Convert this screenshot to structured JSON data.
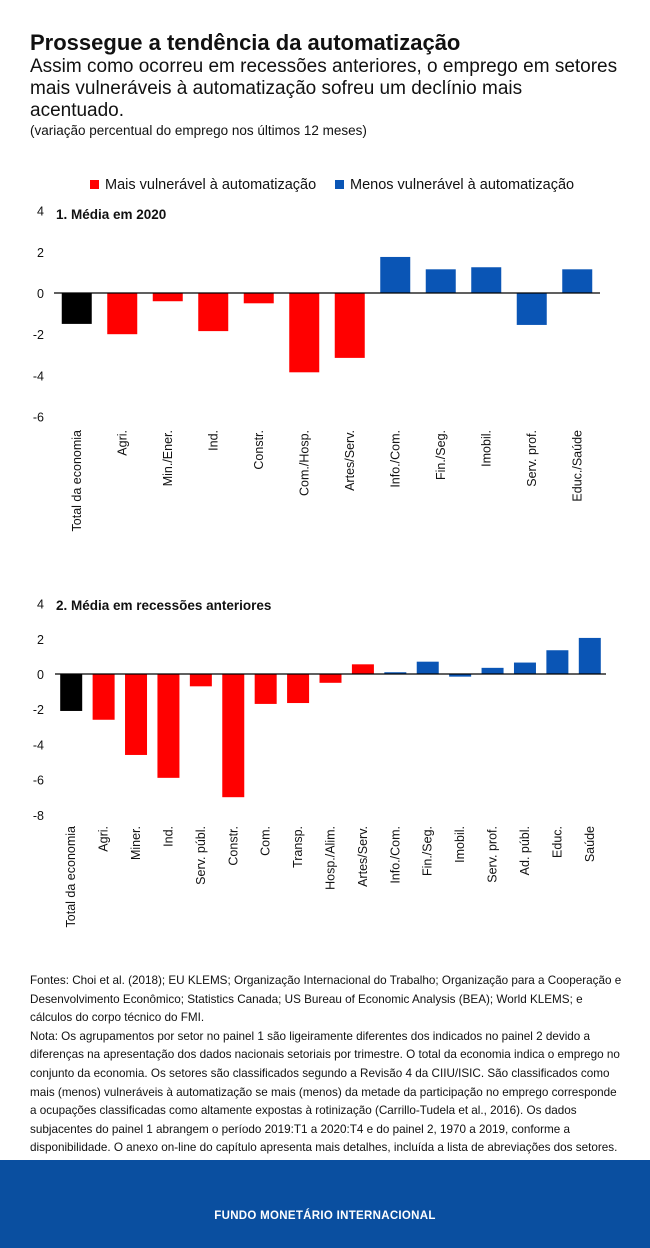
{
  "header": {
    "title": "Prossegue a tendência da automatização",
    "subtitle": "Assim como ocorreu em recessões anteriores, o emprego em setores mais vulneráveis à automatização sofreu um declínio mais acentuado.",
    "unit": "(variação percentual do emprego nos últimos 12 meses)"
  },
  "legend": {
    "red_label": "Mais vulnerável à automatização",
    "blue_label": "Menos vulnerável à automatização"
  },
  "colors": {
    "red": "#ff0000",
    "blue": "#0a55b5",
    "black": "#000000",
    "footer": "#0a4fa0"
  },
  "chart_data": [
    {
      "type": "bar",
      "title": "1. Média em 2020",
      "ylim": [
        -6,
        4
      ],
      "yticks": [
        4,
        2,
        0,
        -2,
        -4,
        -6
      ],
      "categories": [
        "Total da economia",
        "Agri.",
        "Min./Ener.",
        "Ind.",
        "Constr.",
        "Com./Hosp.",
        "Artes/Serv.",
        "Info./Com.",
        "Fin./Seg.",
        "Imobil.",
        "Serv. prof.",
        "Educ./Saúde"
      ],
      "values": [
        -1.5,
        -2.0,
        -0.4,
        -1.85,
        -0.5,
        -3.85,
        -3.15,
        1.75,
        1.15,
        1.25,
        -1.55,
        1.15
      ],
      "groups": [
        "total",
        "red",
        "red",
        "red",
        "red",
        "red",
        "red",
        "blue",
        "blue",
        "blue",
        "blue",
        "blue"
      ]
    },
    {
      "type": "bar",
      "title": "2. Média em recessões anteriores",
      "ylim": [
        -8,
        4
      ],
      "yticks": [
        4,
        2,
        0,
        -2,
        -4,
        -6,
        -8
      ],
      "categories": [
        "Total da economia",
        "Agri.",
        "Miner.",
        "Ind.",
        "Serv. públ.",
        "Constr.",
        "Com.",
        "Transp.",
        "Hosp./Alim.",
        "Artes/Serv.",
        "Info./Com.",
        "Fin./Seg.",
        "Imobil.",
        "Serv. prof.",
        "Ad. públ.",
        "Educ.",
        "Saúde"
      ],
      "values": [
        -2.1,
        -2.6,
        -4.6,
        -5.9,
        -0.7,
        -7.0,
        -1.7,
        -1.65,
        -0.5,
        0.55,
        0.1,
        0.7,
        -0.15,
        0.35,
        0.65,
        1.35,
        2.05
      ],
      "groups": [
        "total",
        "red",
        "red",
        "red",
        "red",
        "red",
        "red",
        "red",
        "red",
        "red",
        "blue",
        "blue",
        "blue",
        "blue",
        "blue",
        "blue",
        "blue"
      ]
    }
  ],
  "notes": {
    "sources": "Fontes: Choi et al. (2018); EU KLEMS; Organização Internacional do Trabalho; Organização para a Cooperação e Desenvolvimento Econômico; Statistics Canada; US Bureau of Economic Analysis (BEA); World KLEMS; e cálculos do corpo técnico do FMI.",
    "note": "Nota: Os agrupamentos por setor no painel 1 são ligeiramente diferentes dos indicados no painel 2 devido a diferenças na apresentação dos dados nacionais setoriais por trimestre. O total da economia indica o emprego no conjunto da economia. Os setores são classificados segundo a Revisão 4 da CIIU/ISIC. São classificados como mais (menos) vulneráveis à automatização se mais (menos) da metade da participação no emprego corresponde a ocupações classificadas como altamente expostas à rotinização (Carrillo-Tudela et al., 2016). Os dados subjacentes do painel 1 abrangem o período 2019:T1 a 2020:T4 e do painel 2, 1970 a 2019, conforme a disponibilidade. O anexo on-line do capítulo apresenta mais detalhes, incluída a lista de abreviações dos setores."
  },
  "footer": {
    "label": "FUNDO MONETÁRIO INTERNACIONAL"
  }
}
